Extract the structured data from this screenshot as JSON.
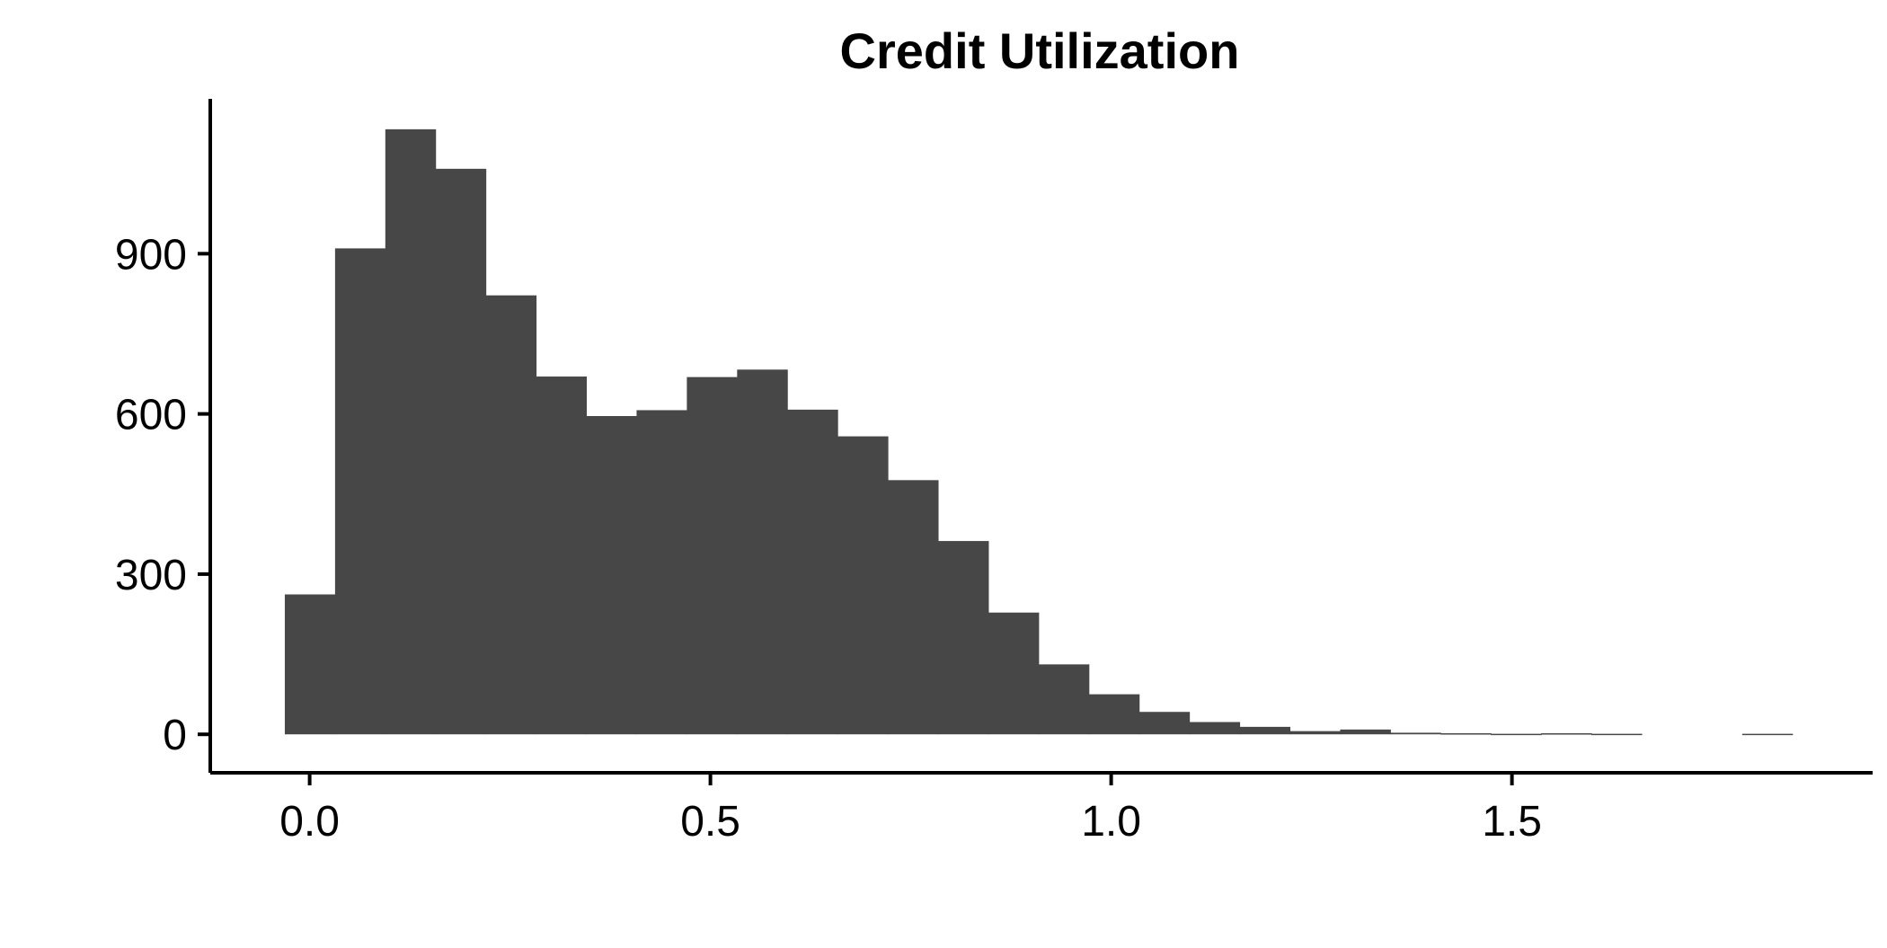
{
  "chart_data": {
    "type": "bar",
    "title": "Credit Utilization",
    "xlabel": "",
    "ylabel": "",
    "bar_color": "#474747",
    "axis_color": "#000000",
    "grid": false,
    "legend": "none",
    "xlim": [
      -0.124,
      1.95
    ],
    "ylim": [
      -72,
      1190
    ],
    "x_ticks": [
      {
        "value": 0.0,
        "label": "0.0"
      },
      {
        "value": 0.5,
        "label": "0.5"
      },
      {
        "value": 1.0,
        "label": "1.0"
      },
      {
        "value": 1.5,
        "label": "1.5"
      }
    ],
    "y_ticks": [
      {
        "value": 0,
        "label": "0"
      },
      {
        "value": 300,
        "label": "300"
      },
      {
        "value": 600,
        "label": "600"
      },
      {
        "value": 900,
        "label": "900"
      }
    ],
    "bin_start": -0.031,
    "bin_width": 0.0627,
    "values": [
      262,
      910,
      1133,
      1059,
      822,
      670,
      596,
      607,
      669,
      683,
      608,
      558,
      476,
      362,
      228,
      131,
      75,
      42,
      23,
      14,
      6,
      9,
      3,
      2,
      1,
      2,
      1,
      0,
      0,
      1
    ]
  }
}
